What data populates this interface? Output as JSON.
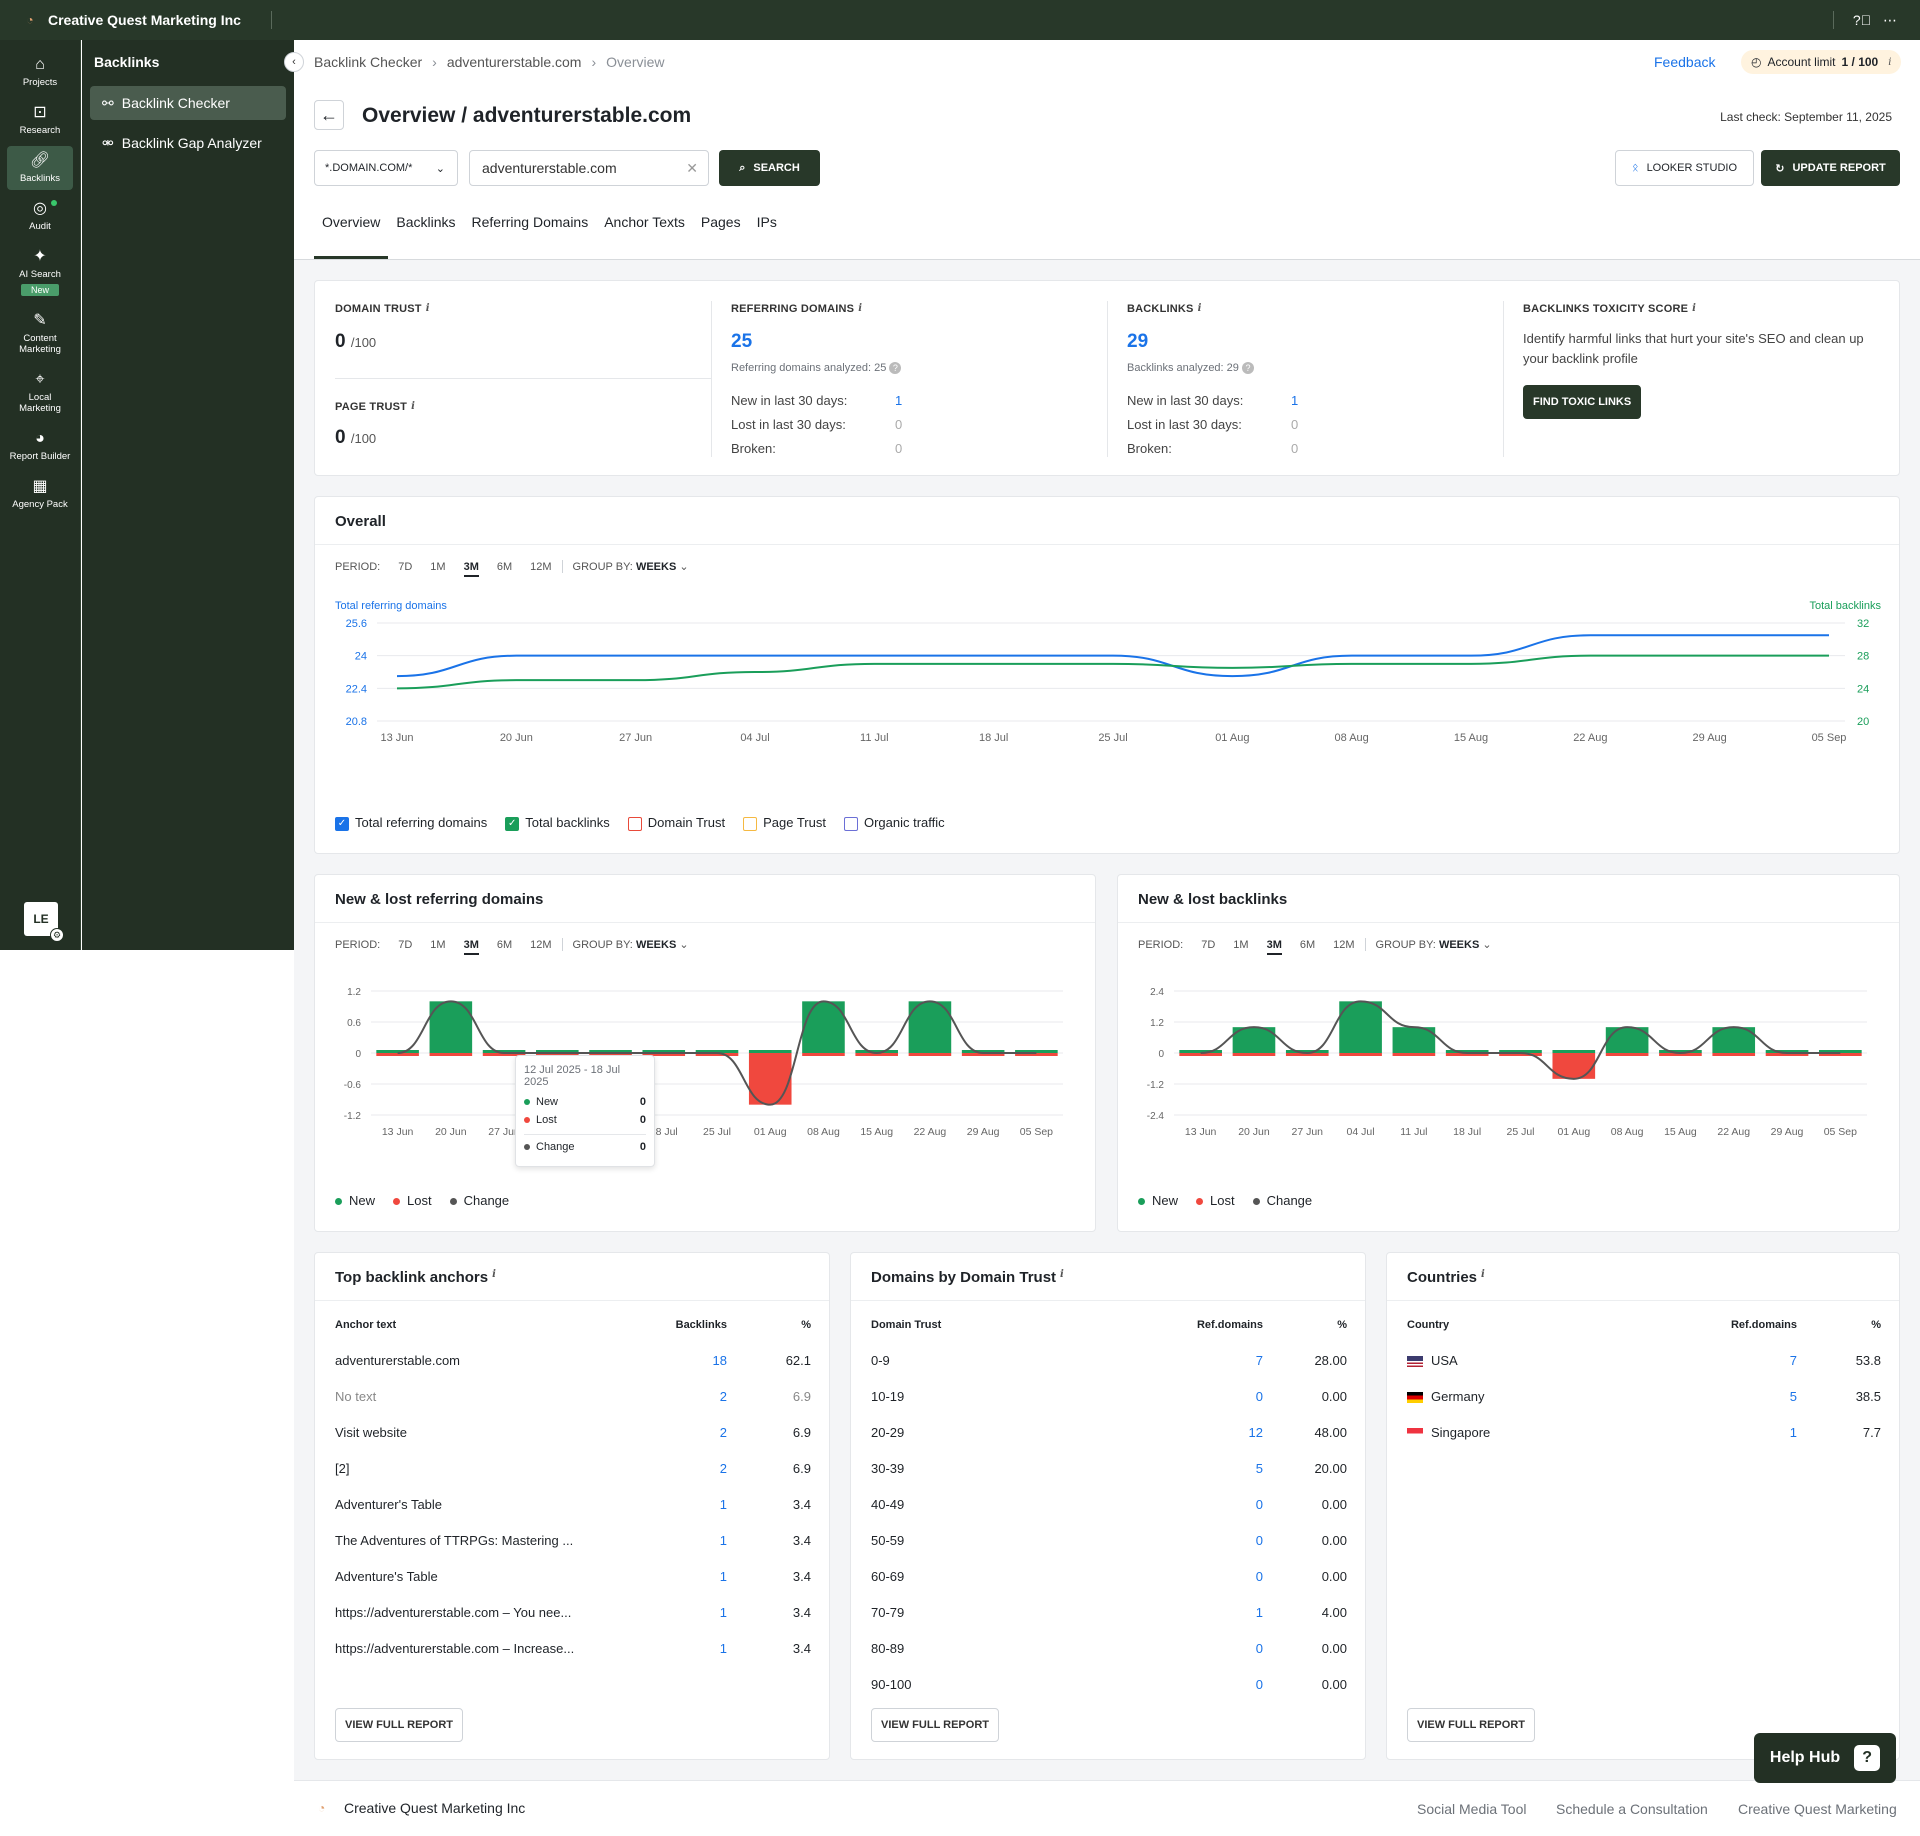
{
  "topbar": {
    "company": "Creative Quest Marketing Inc",
    "help_icon": "question-circle-icon",
    "more_icon": "more-dots-icon"
  },
  "rail": {
    "items": [
      {
        "label": "Projects",
        "icon": "home-icon"
      },
      {
        "label": "Research",
        "icon": "research-icon"
      },
      {
        "label": "Backlinks",
        "icon": "link-icon"
      },
      {
        "label": "Audit",
        "icon": "check-circle-icon"
      },
      {
        "label": "AI Search",
        "icon": "sparkle-icon",
        "badge": "New"
      },
      {
        "label": "Content Marketing",
        "icon": "edit-icon"
      },
      {
        "label": "Local Marketing",
        "icon": "pin-icon"
      },
      {
        "label": "Report Builder",
        "icon": "chart-pie-icon"
      },
      {
        "label": "Agency Pack",
        "icon": "building-icon"
      }
    ],
    "avatar": "LE"
  },
  "sidebar": {
    "title": "Backlinks",
    "items": [
      {
        "label": "Backlink Checker"
      },
      {
        "label": "Backlink Gap Analyzer"
      }
    ]
  },
  "breadcrumbs": [
    "Backlink Checker",
    "adventurerstable.com",
    "Overview"
  ],
  "header": {
    "feedback": "Feedback",
    "account_limit_label": "Account limit",
    "account_limit_value": "1 / 100",
    "title": "Overview / adventurerstable.com",
    "last_check": "Last check: September 11, 2025"
  },
  "search": {
    "scope": "*.DOMAIN.COM/*",
    "value": "adventurerstable.com",
    "search_label": "SEARCH",
    "looker_label": "LOOKER STUDIO",
    "update_label": "UPDATE REPORT"
  },
  "tabs": [
    "Overview",
    "Backlinks",
    "Referring Domains",
    "Anchor Texts",
    "Pages",
    "IPs"
  ],
  "metrics": {
    "domain_trust_label": "DOMAIN TRUST",
    "domain_trust": "0",
    "page_trust_label": "PAGE TRUST",
    "page_trust": "0",
    "of100": "/100",
    "ref_label": "REFERRING DOMAINS",
    "ref_value": "25",
    "ref_analyzed": "Referring domains analyzed: 25",
    "bl_label": "BACKLINKS",
    "bl_value": "29",
    "bl_analyzed": "Backlinks analyzed: 29",
    "new30": "New in last 30 days:",
    "lost30": "Lost in last 30 days:",
    "broken": "Broken:",
    "ref_new": "1",
    "ref_lost": "0",
    "ref_broken": "0",
    "bl_new": "1",
    "bl_lost": "0",
    "bl_broken": "0",
    "tox_label": "BACKLINKS TOXICITY SCORE",
    "tox_text": "Identify harmful links that hurt your site's SEO and clean up your backlink profile",
    "tox_btn": "FIND TOXIC LINKS"
  },
  "periods": {
    "label": "PERIOD:",
    "options": [
      "7D",
      "1M",
      "3M",
      "6M",
      "12M"
    ],
    "selected": "3M",
    "group_label": "GROUP BY:",
    "group_value": "WEEKS"
  },
  "overall": {
    "title": "Overall",
    "left_axis": "Total referring domains",
    "right_axis": "Total backlinks",
    "legend": [
      "Total referring domains",
      "Total backlinks",
      "Domain Trust",
      "Page Trust",
      "Organic traffic"
    ],
    "legend_colors": [
      "#1a73e8",
      "#1a9e5a",
      "#e84a3a",
      "#f5b942",
      "#6b6fd6"
    ],
    "legend_checked": [
      true,
      true,
      false,
      false,
      false
    ]
  },
  "newlost_ref": {
    "title": "New & lost referring domains",
    "tooltip": {
      "range": "12 Jul 2025 - 18 Jul 2025",
      "new": "0",
      "lost": "0",
      "change": "0"
    }
  },
  "newlost_bl": {
    "title": "New & lost backlinks"
  },
  "nl_legend": [
    "New",
    "Lost",
    "Change"
  ],
  "chart_data": [
    {
      "type": "line",
      "title": "Overall",
      "x": [
        "13 Jun",
        "20 Jun",
        "27 Jun",
        "04 Jul",
        "11 Jul",
        "18 Jul",
        "25 Jul",
        "01 Aug",
        "08 Aug",
        "15 Aug",
        "22 Aug",
        "29 Aug",
        "05 Sep"
      ],
      "series": [
        {
          "name": "Total referring domains",
          "axis": "left",
          "color": "#1a73e8",
          "values": [
            23.0,
            24,
            24,
            24,
            24,
            24,
            24,
            23.0,
            24,
            24,
            25,
            25,
            25
          ]
        },
        {
          "name": "Total backlinks",
          "axis": "right",
          "color": "#1a9e5a",
          "values": [
            24,
            25,
            25,
            26,
            27,
            27,
            27,
            26.5,
            27,
            27,
            28,
            28,
            28
          ]
        }
      ],
      "ylim_left": [
        20.8,
        25.6
      ],
      "yticks_left": [
        "25.6",
        "24",
        "22.4",
        "20.8"
      ],
      "ylim_right": [
        20,
        32
      ],
      "yticks_right": [
        "32",
        "28",
        "24",
        "20"
      ]
    },
    {
      "type": "bar",
      "title": "New & lost referring domains",
      "categories": [
        "13 Jun",
        "20 Jun",
        "27 Jun",
        "04 Jul",
        "11 Jul",
        "18 Jul",
        "25 Jul",
        "01 Aug",
        "08 Aug",
        "15 Aug",
        "22 Aug",
        "29 Aug",
        "05 Sep"
      ],
      "series": [
        {
          "name": "New",
          "color": "#1a9e5a",
          "values": [
            0,
            1,
            0,
            0,
            0,
            0,
            0,
            0,
            1,
            0,
            1,
            0,
            0
          ]
        },
        {
          "name": "Lost",
          "color": "#f0483e",
          "values": [
            0,
            0,
            0,
            0,
            0,
            0,
            0,
            -1,
            0,
            0,
            0,
            0,
            0
          ]
        },
        {
          "name": "Change",
          "color": "#555",
          "values": [
            0,
            1,
            0,
            0,
            0,
            0,
            0,
            -1,
            1,
            0,
            1,
            0,
            0
          ]
        }
      ],
      "ylim": [
        -1.2,
        1.2
      ],
      "yticks": [
        "1.2",
        "0.6",
        "0",
        "-0.6",
        "-1.2"
      ]
    },
    {
      "type": "bar",
      "title": "New & lost backlinks",
      "categories": [
        "13 Jun",
        "20 Jun",
        "27 Jun",
        "04 Jul",
        "11 Jul",
        "18 Jul",
        "25 Jul",
        "01 Aug",
        "08 Aug",
        "15 Aug",
        "22 Aug",
        "29 Aug",
        "05 Sep"
      ],
      "series": [
        {
          "name": "New",
          "color": "#1a9e5a",
          "values": [
            0,
            1,
            0,
            2,
            1,
            0,
            0,
            0,
            1,
            0,
            1,
            0,
            0
          ]
        },
        {
          "name": "Lost",
          "color": "#f0483e",
          "values": [
            0,
            0,
            0,
            0,
            0,
            0,
            0,
            -1,
            0,
            0,
            0,
            0,
            0
          ]
        },
        {
          "name": "Change",
          "color": "#555",
          "values": [
            0,
            1,
            0,
            2,
            1,
            0,
            0,
            -1,
            1,
            0,
            1,
            0,
            0
          ]
        }
      ],
      "ylim": [
        -2.4,
        2.4
      ],
      "yticks": [
        "2.4",
        "1.2",
        "0",
        "-1.2",
        "-2.4"
      ]
    }
  ],
  "anchors": {
    "title": "Top backlink anchors",
    "cols": [
      "Anchor text",
      "Backlinks",
      "%"
    ],
    "rows": [
      [
        "adventurerstable.com",
        "18",
        "62.1"
      ],
      [
        "No text",
        "2",
        "6.9"
      ],
      [
        "Visit website",
        "2",
        "6.9"
      ],
      [
        "[2]",
        "2",
        "6.9"
      ],
      [
        "Adventurer's Table",
        "1",
        "3.4"
      ],
      [
        "The Adventures of TTRPGs: Mastering ...",
        "1",
        "3.4"
      ],
      [
        "Adventure's Table",
        "1",
        "3.4"
      ],
      [
        "https://adventurerstable.com – You nee...",
        "1",
        "3.4"
      ],
      [
        "https://adventurerstable.com – Increase...",
        "1",
        "3.4"
      ]
    ],
    "btn": "VIEW FULL REPORT"
  },
  "dt": {
    "title": "Domains by Domain Trust",
    "cols": [
      "Domain Trust",
      "Ref.domains",
      "%"
    ],
    "rows": [
      [
        "0-9",
        "7",
        "28.00"
      ],
      [
        "10-19",
        "0",
        "0.00"
      ],
      [
        "20-29",
        "12",
        "48.00"
      ],
      [
        "30-39",
        "5",
        "20.00"
      ],
      [
        "40-49",
        "0",
        "0.00"
      ],
      [
        "50-59",
        "0",
        "0.00"
      ],
      [
        "60-69",
        "0",
        "0.00"
      ],
      [
        "70-79",
        "1",
        "4.00"
      ],
      [
        "80-89",
        "0",
        "0.00"
      ],
      [
        "90-100",
        "0",
        "0.00"
      ]
    ],
    "btn": "VIEW FULL REPORT"
  },
  "countries": {
    "title": "Countries",
    "cols": [
      "Country",
      "Ref.domains",
      "%"
    ],
    "rows": [
      [
        "USA",
        "7",
        "53.8"
      ],
      [
        "Germany",
        "5",
        "38.5"
      ],
      [
        "Singapore",
        "1",
        "7.7"
      ]
    ],
    "btn": "VIEW FULL REPORT"
  },
  "footer": {
    "company": "Creative Quest Marketing Inc",
    "links": [
      "Social Media Tool",
      "Schedule a Consultation",
      "Creative Quest Marketing"
    ]
  },
  "helphub": "Help Hub"
}
